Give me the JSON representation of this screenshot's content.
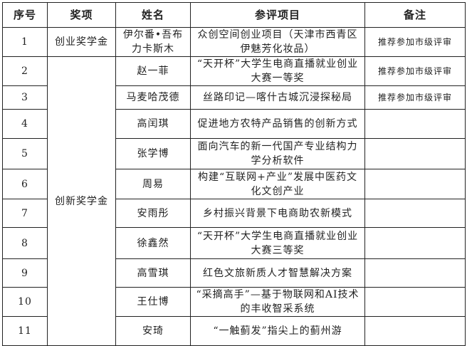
{
  "headers": [
    "序号",
    "奖项",
    "姓名",
    "参评项目",
    "备注"
  ],
  "award_groups": [
    "创业奖学金",
    "创新奖学金"
  ],
  "rows": [
    {
      "no": "1",
      "name": "伊尔番•吾布力卡斯木",
      "project": "众创空间创业项目（天津市西青区伊魅芳化妆品）",
      "note": "推荐参加市级评审"
    },
    {
      "no": "2",
      "name": "赵一菲",
      "project": "“天开杯”大学生电商直播就业创业大赛一等奖",
      "note": "推荐参加市级评审"
    },
    {
      "no": "3",
      "name": "马麦哈茂德",
      "project": "丝路印记—喀什古城沉浸探秘局",
      "note": "推荐参加市级评审"
    },
    {
      "no": "4",
      "name": "高闰琪",
      "project": "促进地方农特产品销售的创新方式",
      "note": ""
    },
    {
      "no": "5",
      "name": "张学博",
      "project": "面向汽车的新一代国产专业结构力学分析软件",
      "note": ""
    },
    {
      "no": "6",
      "name": "周易",
      "project": "构建“互联网+产业”发展中医药文化文创产业",
      "note": ""
    },
    {
      "no": "7",
      "name": "安雨彤",
      "project": "乡村振兴背景下电商助农新模式",
      "note": ""
    },
    {
      "no": "8",
      "name": "徐鑫然",
      "project": "“天开杯”大学生电商直播就业创业大赛三等奖",
      "note": ""
    },
    {
      "no": "9",
      "name": "高雪琪",
      "project": "红色文旅新质人才智慧解决方案",
      "note": ""
    },
    {
      "no": "10",
      "name": "王仕博",
      "project": "“采摘高手”—基于物联网和AI技术的丰收智采系统",
      "note": ""
    },
    {
      "no": "11",
      "name": "安琦",
      "project": "“一触蓟发”指尖上的蓟州游",
      "note": ""
    }
  ]
}
